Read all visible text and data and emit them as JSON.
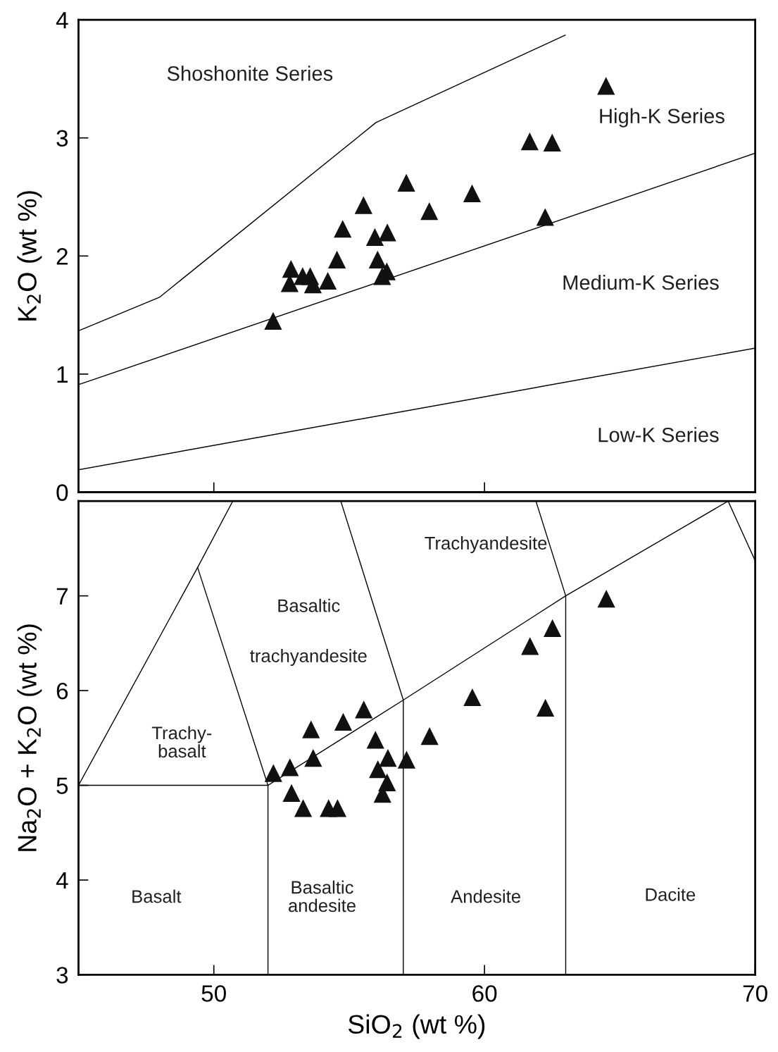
{
  "chart_data": [
    {
      "type": "scatter",
      "ylabel": "K$_{2}$O (wt %)",
      "xlim": [
        45,
        70
      ],
      "ylim": [
        0,
        4
      ],
      "xticks": [
        {
          "value": 50,
          "label": null
        },
        {
          "value": 60,
          "label": null
        }
      ],
      "yticks": [
        0,
        1,
        2,
        3,
        4
      ],
      "tick_labels": "y",
      "grid": false,
      "series": [
        {
          "type": "line",
          "color": "#000000",
          "marker": "none",
          "x": [
            45.04,
            47.99,
            55.99,
            62.98
          ],
          "values": [
            1.37,
            1.65,
            3.13,
            3.87
          ]
        },
        {
          "type": "line",
          "color": "#000000",
          "marker": "none",
          "x": [
            45,
            70
          ],
          "values": [
            0.91,
            2.87
          ]
        },
        {
          "type": "line",
          "color": "#000000",
          "marker": "none",
          "x": [
            45,
            70
          ],
          "values": [
            0.19,
            1.22
          ]
        },
        {
          "color": "#111111",
          "marker": "triangle",
          "x": [
            52.19,
            52.85,
            52.8,
            53.28,
            53.56,
            53.66,
            54.21,
            54.55,
            54.76,
            55.53,
            55.95,
            56.41,
            56.05,
            56.22,
            56.39,
            57.11,
            57.96,
            59.54,
            61.67,
            62.5,
            62.24,
            64.49
          ],
          "values": [
            1.45,
            1.89,
            1.77,
            1.83,
            1.83,
            1.76,
            1.79,
            1.97,
            2.23,
            2.43,
            2.16,
            2.2,
            1.97,
            1.83,
            1.87,
            2.62,
            2.38,
            2.53,
            2.97,
            2.96,
            2.33,
            3.44
          ]
        }
      ],
      "annotations": [
        "Shoshonite Series",
        "High-K Series",
        "Medium-K Series",
        "Low-K Series"
      ]
    },
    {
      "type": "scatter",
      "xlabel": "SiO$_{2}$ (wt %)",
      "ylabel": "Na$_{2}$O + K$_{2}$O (wt %)",
      "xlim": [
        45,
        70
      ],
      "ylim": [
        3,
        8
      ],
      "xticks": [
        50,
        60,
        70
      ],
      "yticks": [
        3,
        4,
        5,
        6,
        7
      ],
      "grid": false,
      "series": [
        {
          "type": "line",
          "color": "#000000",
          "marker": "none",
          "x": [
            45,
            49.4,
            50.7
          ],
          "values": [
            5,
            7.3,
            8
          ]
        },
        {
          "type": "line",
          "color": "#000000",
          "marker": "none",
          "x": [
            45,
            52,
            52
          ],
          "values": [
            5,
            5,
            3
          ]
        },
        {
          "type": "line",
          "color": "#000000",
          "marker": "none",
          "x": [
            52,
            49.4
          ],
          "values": [
            5,
            7.3
          ]
        },
        {
          "type": "line",
          "color": "#000000",
          "marker": "none",
          "x": [
            52,
            57,
            63,
            69,
            70
          ],
          "values": [
            5,
            5.9,
            7,
            8,
            7.37
          ]
        },
        {
          "type": "line",
          "color": "#000000",
          "marker": "none",
          "x": [
            54.69,
            57,
            57
          ],
          "values": [
            8,
            5.9,
            3
          ]
        },
        {
          "type": "line",
          "color": "#000000",
          "marker": "none",
          "x": [
            61.9,
            63,
            63
          ],
          "values": [
            8,
            7,
            3
          ]
        },
        {
          "color": "#111111",
          "marker": "triangle",
          "x": [
            52.2,
            52.81,
            53.67,
            53.59,
            54.78,
            55.54,
            55.97,
            56.43,
            56.06,
            56.4,
            56.23,
            57.12,
            57.97,
            59.55,
            61.68,
            62.51,
            62.25,
            64.5,
            52.87,
            53.3,
            54.24,
            54.57
          ],
          "values": [
            5.13,
            5.19,
            5.29,
            5.59,
            5.67,
            5.8,
            5.48,
            5.29,
            5.17,
            5.03,
            4.91,
            5.27,
            5.52,
            5.93,
            6.47,
            6.66,
            5.82,
            6.97,
            4.92,
            4.76,
            4.76,
            4.76
          ]
        }
      ],
      "annotations": [
        "Trachyandesite",
        "Basaltic",
        "trachyandesite",
        "Trachy-\nbasalt",
        "Basalt",
        "Basaltic\nandesite",
        "Andesite",
        "Dacite"
      ]
    }
  ]
}
